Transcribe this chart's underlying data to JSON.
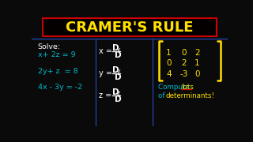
{
  "bg_color": "#0a0a0a",
  "title": "CRAMER'S RULE",
  "title_color": "#FFE000",
  "title_box_edge_top": "#CC0000",
  "title_box_edge_bottom": "#CC0000",
  "divider_color": "#2244aa",
  "solve_label": "Solve:",
  "eq1": "x+ 2z = 9",
  "eq2": "2y+ z  = 8",
  "eq3": "4x - 3y = -2",
  "eq_color": "#00BBCC",
  "solve_color": "#ffffff",
  "formula_color": "#ffffff",
  "matrix_vals": [
    [
      1,
      0,
      2
    ],
    [
      0,
      2,
      1
    ],
    [
      4,
      -3,
      0
    ]
  ],
  "matrix_color": "#FFE000",
  "bracket_color": "#FFE000",
  "compute_color": "#00BBCC",
  "lots_color": "#FFE000",
  "lots_underline": "#CC0000",
  "title_fontsize": 13,
  "eq_fontsize": 6.8,
  "formula_fontsize": 7.0,
  "matrix_fontsize": 7.5
}
